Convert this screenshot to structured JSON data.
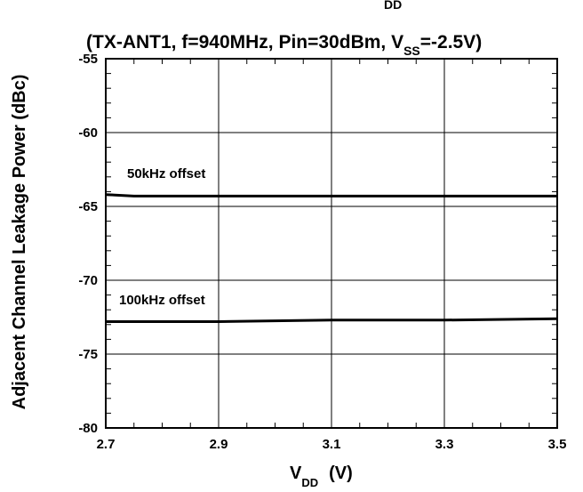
{
  "chart_data": {
    "type": "line",
    "title": {
      "top_cut_subscript": "DD",
      "prefix": "(TX-ANT1, f=940MHz, Pin=30dBm, V",
      "subscript": "SS",
      "suffix": "=-2.5V)"
    },
    "xlabel": {
      "main": "V",
      "subscript": "DD",
      "unit": "(V)"
    },
    "ylabel": "Adjacent Channel Leakage Power   (dBc)",
    "xlim": [
      2.7,
      3.5
    ],
    "ylim": [
      -80,
      -55
    ],
    "x_ticks": [
      "2.7",
      "2.9",
      "3.1",
      "3.3",
      "3.5"
    ],
    "y_ticks": [
      "-55",
      "-60",
      "-65",
      "-70",
      "-75",
      "-80"
    ],
    "grid": true,
    "reference_line": -65,
    "series": [
      {
        "label": "50kHz offset",
        "x": [
          2.7,
          2.75,
          2.8,
          3.0,
          3.2,
          3.4,
          3.5
        ],
        "y": [
          -64.2,
          -64.3,
          -64.3,
          -64.3,
          -64.3,
          -64.3,
          -64.3
        ]
      },
      {
        "label": "100kHz offset",
        "x": [
          2.7,
          2.9,
          3.1,
          3.3,
          3.5
        ],
        "y": [
          -72.8,
          -72.8,
          -72.7,
          -72.7,
          -72.6
        ]
      }
    ]
  }
}
